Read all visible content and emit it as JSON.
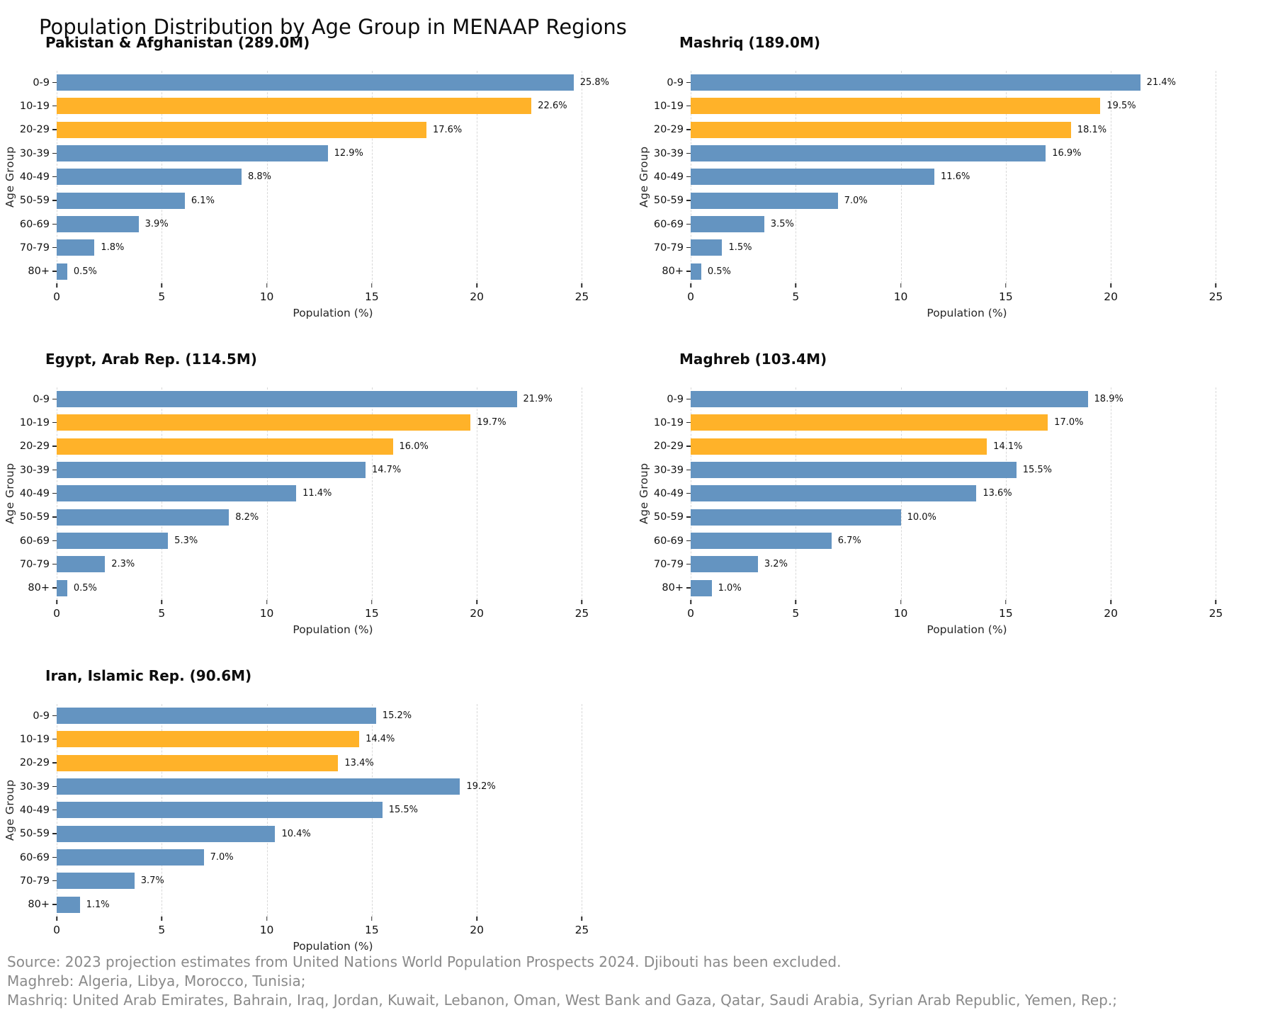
{
  "page": {
    "title": "Population Distribution by Age Group in MENAAP Regions"
  },
  "colors": {
    "bar_default": "#6494C1",
    "bar_highlight": "#FFB229",
    "gridline": "#d8d8d8",
    "footer_text": "#8a8a8a"
  },
  "chart_data": [
    {
      "type": "bar",
      "orientation": "horizontal",
      "title": "Pakistan & Afghanistan (289.0M)",
      "categories": [
        "0-9",
        "10-19",
        "20-29",
        "30-39",
        "40-49",
        "50-59",
        "60-69",
        "70-79",
        "80+"
      ],
      "values": [
        25.8,
        22.6,
        17.6,
        12.9,
        8.8,
        6.1,
        3.9,
        1.8,
        0.5
      ],
      "value_labels": [
        "25.8%",
        "22.6%",
        "17.6%",
        "12.9%",
        "8.8%",
        "6.1%",
        "3.9%",
        "1.8%",
        "0.5%"
      ],
      "highlight_categories": [
        "10-19",
        "20-29"
      ],
      "xlabel": "Population (%)",
      "ylabel": "Age Group",
      "xlim": [
        0,
        26.3
      ],
      "xticks": [
        0,
        5,
        10,
        15,
        20,
        25
      ],
      "grid": true,
      "legend": false
    },
    {
      "type": "bar",
      "orientation": "horizontal",
      "title": "Mashriq (189.0M)",
      "categories": [
        "0-9",
        "10-19",
        "20-29",
        "30-39",
        "40-49",
        "50-59",
        "60-69",
        "70-79",
        "80+"
      ],
      "values": [
        21.4,
        19.5,
        18.1,
        16.9,
        11.6,
        7.0,
        3.5,
        1.5,
        0.5
      ],
      "value_labels": [
        "21.4%",
        "19.5%",
        "18.1%",
        "16.9%",
        "11.6%",
        "7.0%",
        "3.5%",
        "1.5%",
        "0.5%"
      ],
      "highlight_categories": [
        "10-19",
        "20-29"
      ],
      "xlabel": "Population (%)",
      "ylabel": "Age Group",
      "xlim": [
        0,
        26.3
      ],
      "xticks": [
        0,
        5,
        10,
        15,
        20,
        25
      ],
      "grid": true,
      "legend": false
    },
    {
      "type": "bar",
      "orientation": "horizontal",
      "title": "Egypt, Arab Rep. (114.5M)",
      "categories": [
        "0-9",
        "10-19",
        "20-29",
        "30-39",
        "40-49",
        "50-59",
        "60-69",
        "70-79",
        "80+"
      ],
      "values": [
        21.9,
        19.7,
        16.0,
        14.7,
        11.4,
        8.2,
        5.3,
        2.3,
        0.5
      ],
      "value_labels": [
        "21.9%",
        "19.7%",
        "16.0%",
        "14.7%",
        "11.4%",
        "8.2%",
        "5.3%",
        "2.3%",
        "0.5%"
      ],
      "highlight_categories": [
        "10-19",
        "20-29"
      ],
      "xlabel": "Population (%)",
      "ylabel": "Age Group",
      "xlim": [
        0,
        26.3
      ],
      "xticks": [
        0,
        5,
        10,
        15,
        20,
        25
      ],
      "grid": true,
      "legend": false
    },
    {
      "type": "bar",
      "orientation": "horizontal",
      "title": "Maghreb (103.4M)",
      "categories": [
        "0-9",
        "10-19",
        "20-29",
        "30-39",
        "40-49",
        "50-59",
        "60-69",
        "70-79",
        "80+"
      ],
      "values": [
        18.9,
        17.0,
        14.1,
        15.5,
        13.6,
        10.0,
        6.7,
        3.2,
        1.0
      ],
      "value_labels": [
        "18.9%",
        "17.0%",
        "14.1%",
        "15.5%",
        "13.6%",
        "10.0%",
        "6.7%",
        "3.2%",
        "1.0%"
      ],
      "highlight_categories": [
        "10-19",
        "20-29"
      ],
      "xlabel": "Population (%)",
      "ylabel": "Age Group",
      "xlim": [
        0,
        26.3
      ],
      "xticks": [
        0,
        5,
        10,
        15,
        20,
        25
      ],
      "grid": true,
      "legend": false
    },
    {
      "type": "bar",
      "orientation": "horizontal",
      "title": "Iran, Islamic Rep. (90.6M)",
      "categories": [
        "0-9",
        "10-19",
        "20-29",
        "30-39",
        "40-49",
        "50-59",
        "60-69",
        "70-79",
        "80+"
      ],
      "values": [
        15.2,
        14.4,
        13.4,
        19.2,
        15.5,
        10.4,
        7.0,
        3.7,
        1.1
      ],
      "value_labels": [
        "15.2%",
        "14.4%",
        "13.4%",
        "19.2%",
        "15.5%",
        "10.4%",
        "7.0%",
        "3.7%",
        "1.1%"
      ],
      "highlight_categories": [
        "10-19",
        "20-29"
      ],
      "xlabel": "Population (%)",
      "ylabel": "Age Group",
      "xlim": [
        0,
        26.3
      ],
      "xticks": [
        0,
        5,
        10,
        15,
        20,
        25
      ],
      "grid": true,
      "legend": false
    }
  ],
  "footer": {
    "lines": [
      "Source: 2023 projection estimates from United Nations World Population Prospects 2024. Djibouti has been excluded.",
      "Maghreb: Algeria, Libya, Morocco, Tunisia;",
      "Mashriq: United Arab Emirates, Bahrain, Iraq, Jordan, Kuwait, Lebanon, Oman, West Bank and Gaza, Qatar, Saudi Arabia, Syrian Arab Republic, Yemen, Rep.;"
    ]
  }
}
